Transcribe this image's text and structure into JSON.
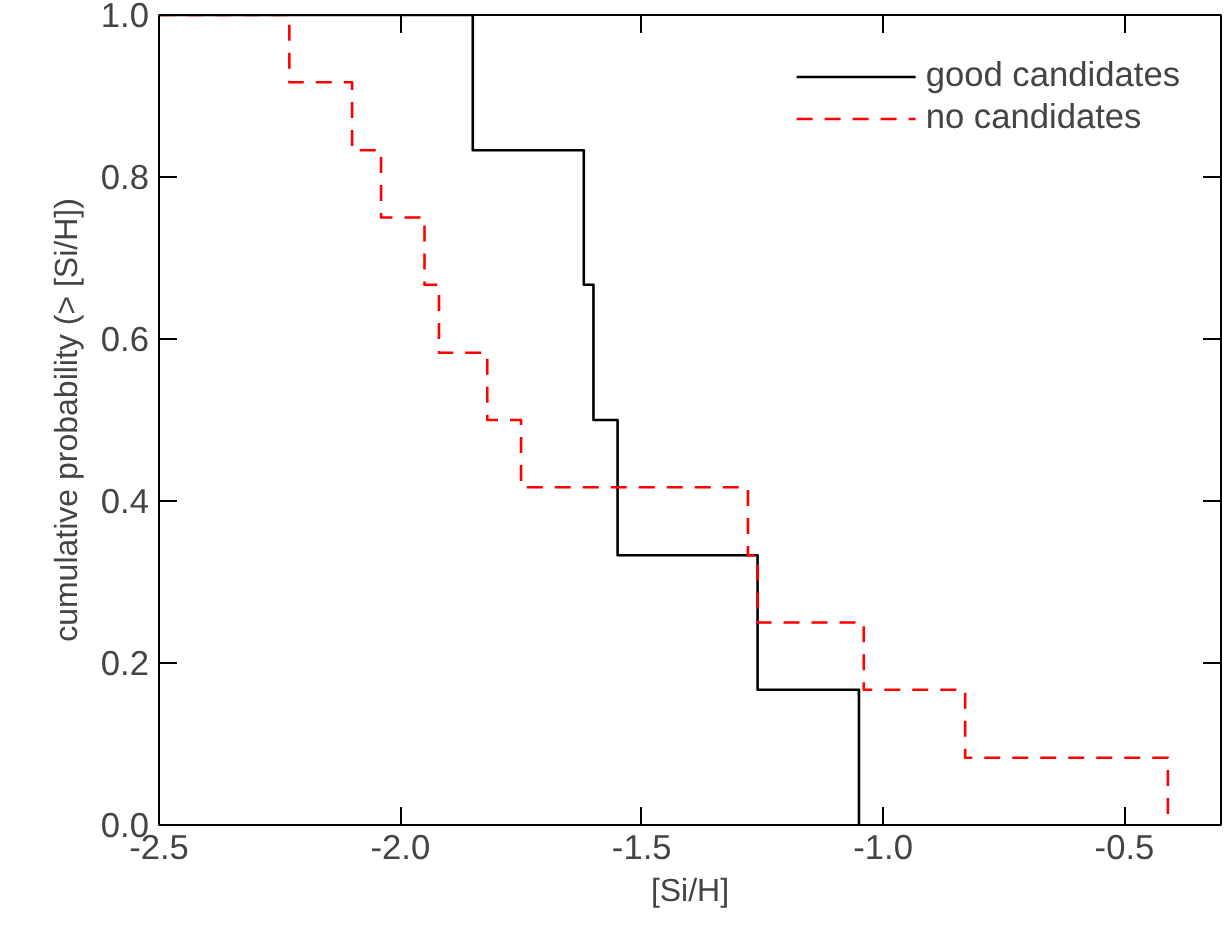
{
  "chart_data": {
    "type": "step",
    "xlabel": "[Si/H]",
    "ylabel": "cumulative probability (> [Si/H])",
    "xlim": [
      -2.5,
      -0.3
    ],
    "ylim": [
      0,
      1
    ],
    "xticks": [
      -2.5,
      {
        "value": -2.0,
        "label": "-2.0"
      },
      -1.5,
      {
        "value": -1.0,
        "label": "-1.0"
      },
      -0.5
    ],
    "yticks": [
      {
        "value": 0,
        "label": "0.0"
      },
      0.2,
      0.4,
      0.6,
      0.8,
      {
        "value": 1,
        "label": "1.0"
      }
    ],
    "grid": false,
    "legend": "top right",
    "series": [
      {
        "name": "good candidates",
        "color": "#000000",
        "line_style": "solid",
        "x": [
          -2.5,
          -1.85,
          -1.62,
          -1.6,
          -1.55,
          -1.26,
          -1.05
        ],
        "values": [
          1.0,
          0.833,
          0.667,
          0.5,
          0.333,
          0.167,
          0.0
        ]
      },
      {
        "name": "no candidates",
        "color": "#ff0000",
        "line_style": "dashed",
        "x": [
          -2.5,
          -2.23,
          -2.1,
          -2.04,
          -1.95,
          -1.92,
          -1.82,
          -1.75,
          -1.28,
          -1.26,
          -1.04,
          -0.83,
          -0.41
        ],
        "values": [
          1.0,
          0.917,
          0.833,
          0.75,
          0.667,
          0.583,
          0.5,
          0.417,
          0.333,
          0.25,
          0.167,
          0.083,
          0.0
        ]
      }
    ]
  }
}
